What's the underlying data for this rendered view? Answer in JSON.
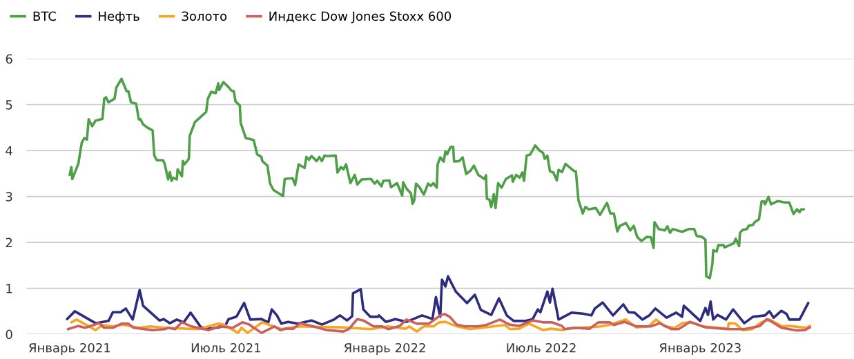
{
  "chart_data": {
    "type": "line",
    "legend": "top left",
    "grid": "y",
    "line_style": "solid",
    "marker": "none",
    "xlim": [
      "2020-11-12",
      "2023-06-28"
    ],
    "xticks": [
      {
        "value": "2021-01-01",
        "label": "Январь 2021"
      },
      {
        "value": "2021-07-01",
        "label": "Июль 2021"
      },
      {
        "value": "2022-01-01",
        "label": "Январь 2022"
      },
      {
        "value": "2022-07-01",
        "label": "Июль 2022"
      },
      {
        "value": "2023-01-01",
        "label": "Январь 2023"
      }
    ],
    "ylim": [
      0,
      6
    ],
    "yticks": [
      0,
      1,
      2,
      3,
      4,
      5,
      6
    ],
    "series": [
      {
        "name": "BTC",
        "color": "#4f9f49",
        "x": [
          "2021-01-01",
          "2021-01-03",
          "2021-01-04",
          "2021-01-11",
          "2021-01-15",
          "2021-01-18",
          "2021-01-21",
          "2021-01-23",
          "2021-01-27",
          "2021-01-31",
          "2021-02-08",
          "2021-02-10",
          "2021-02-12",
          "2021-02-15",
          "2021-02-22",
          "2021-02-24",
          "2021-03-02",
          "2021-03-08",
          "2021-03-10",
          "2021-03-13",
          "2021-03-19",
          "2021-03-22",
          "2021-03-24",
          "2021-03-27",
          "2021-04-01",
          "2021-04-07",
          "2021-04-09",
          "2021-04-12",
          "2021-04-19",
          "2021-04-21",
          "2021-04-25",
          "2021-04-27",
          "2021-04-29",
          "2021-05-01",
          "2021-05-05",
          "2021-05-06",
          "2021-05-11",
          "2021-05-12",
          "2021-05-14",
          "2021-05-19",
          "2021-05-20",
          "2021-05-26",
          "2021-06-08",
          "2021-06-10",
          "2021-06-14",
          "2021-06-19",
          "2021-06-22",
          "2021-06-23",
          "2021-06-28",
          "2021-07-04",
          "2021-07-07",
          "2021-07-10",
          "2021-07-12",
          "2021-07-17",
          "2021-07-18",
          "2021-07-24",
          "2021-08-02",
          "2021-08-06",
          "2021-08-11",
          "2021-08-12",
          "2021-08-18",
          "2021-08-21",
          "2021-08-25",
          "2021-09-05",
          "2021-09-07",
          "2021-09-16",
          "2021-09-19",
          "2021-09-23",
          "2021-09-30",
          "2021-10-02",
          "2021-10-05",
          "2021-10-08",
          "2021-10-14",
          "2021-10-17",
          "2021-10-20",
          "2021-10-23",
          "2021-10-26",
          "2021-11-05",
          "2021-11-07",
          "2021-11-11",
          "2021-11-14",
          "2021-11-17",
          "2021-11-22",
          "2021-11-27",
          "2021-11-30",
          "2021-12-05",
          "2021-12-16",
          "2021-12-20",
          "2021-12-23",
          "2021-12-28",
          "2021-12-30",
          "2022-01-06",
          "2022-01-08",
          "2022-01-15",
          "2022-01-21",
          "2022-01-22",
          "2022-01-26",
          "2022-01-31",
          "2022-02-02",
          "2022-02-04",
          "2022-02-06",
          "2022-02-10",
          "2022-02-15",
          "2022-02-20",
          "2022-02-23",
          "2022-02-26",
          "2022-03-02",
          "2022-03-03",
          "2022-03-06",
          "2022-03-10",
          "2022-03-12",
          "2022-03-14",
          "2022-03-18",
          "2022-03-21",
          "2022-03-22",
          "2022-03-28",
          "2022-04-01",
          "2022-04-05",
          "2022-04-10",
          "2022-04-14",
          "2022-04-19",
          "2022-04-26",
          "2022-04-28",
          "2022-04-29",
          "2022-05-02",
          "2022-05-04",
          "2022-05-07",
          "2022-05-09",
          "2022-05-12",
          "2022-05-16",
          "2022-05-21",
          "2022-05-28",
          "2022-05-29",
          "2022-06-02",
          "2022-06-06",
          "2022-06-09",
          "2022-06-11",
          "2022-06-14",
          "2022-06-18",
          "2022-06-24",
          "2022-06-29",
          "2022-07-03",
          "2022-07-05",
          "2022-07-08",
          "2022-07-11",
          "2022-07-15",
          "2022-07-19",
          "2022-07-21",
          "2022-07-25",
          "2022-07-29",
          "2022-08-08",
          "2022-08-10",
          "2022-08-13",
          "2022-08-18",
          "2022-08-21",
          "2022-08-25",
          "2022-09-02",
          "2022-09-07",
          "2022-09-15",
          "2022-09-19",
          "2022-09-23",
          "2022-09-27",
          "2022-09-30",
          "2022-10-07",
          "2022-10-12",
          "2022-10-16",
          "2022-10-20",
          "2022-10-25",
          "2022-10-31",
          "2022-11-05",
          "2022-11-08",
          "2022-11-09",
          "2022-11-14",
          "2022-11-21",
          "2022-11-24",
          "2022-11-27",
          "2022-11-30",
          "2022-12-11",
          "2022-12-19",
          "2022-12-25",
          "2022-12-28",
          "2023-01-03",
          "2023-01-07",
          "2023-01-08",
          "2023-01-12",
          "2023-01-15",
          "2023-01-16",
          "2023-01-20",
          "2023-01-22",
          "2023-01-28",
          "2023-01-29",
          "2023-02-09",
          "2023-02-11",
          "2023-02-15",
          "2023-02-16",
          "2023-02-19",
          "2023-02-24",
          "2023-02-26",
          "2023-03-03",
          "2023-03-05",
          "2023-03-10",
          "2023-03-13",
          "2023-03-16",
          "2023-03-17",
          "2023-03-21",
          "2023-03-24",
          "2023-04-01",
          "2023-04-09",
          "2023-04-14",
          "2023-04-19",
          "2023-04-23",
          "2023-04-26",
          "2023-04-28",
          "2023-05-01"
        ],
        "values": [
          3.47,
          3.64,
          3.38,
          3.71,
          4.17,
          4.27,
          4.24,
          4.68,
          4.53,
          4.65,
          4.69,
          5.13,
          5.16,
          5.05,
          5.13,
          5.37,
          5.56,
          5.29,
          5.29,
          5.05,
          5.02,
          4.68,
          4.68,
          4.57,
          4.5,
          4.44,
          3.89,
          3.79,
          3.79,
          3.71,
          3.37,
          3.53,
          3.34,
          3.41,
          3.37,
          3.59,
          3.44,
          3.77,
          3.7,
          3.82,
          4.32,
          4.62,
          4.84,
          5.13,
          5.28,
          5.25,
          5.46,
          5.32,
          5.49,
          5.38,
          5.31,
          5.29,
          5.07,
          4.98,
          4.6,
          4.27,
          4.23,
          3.92,
          3.86,
          3.77,
          3.67,
          3.28,
          3.14,
          3.01,
          3.38,
          3.4,
          3.25,
          3.7,
          3.62,
          3.86,
          3.8,
          3.88,
          3.77,
          3.86,
          3.77,
          3.89,
          3.88,
          3.89,
          3.52,
          3.64,
          3.59,
          3.7,
          3.29,
          3.47,
          3.26,
          3.37,
          3.38,
          3.28,
          3.34,
          3.22,
          3.34,
          3.35,
          3.2,
          3.29,
          3.02,
          3.31,
          3.17,
          3.07,
          2.84,
          2.92,
          3.28,
          3.2,
          3.04,
          3.28,
          3.23,
          3.29,
          3.19,
          3.7,
          3.85,
          3.76,
          3.98,
          3.92,
          4.08,
          4.08,
          3.76,
          3.77,
          3.85,
          3.49,
          3.56,
          3.67,
          3.47,
          3.38,
          3.46,
          2.95,
          2.93,
          2.77,
          3.05,
          2.75,
          3.29,
          3.19,
          3.38,
          3.46,
          3.32,
          3.47,
          3.41,
          3.52,
          3.34,
          3.89,
          3.91,
          4.11,
          4.0,
          3.95,
          3.82,
          3.89,
          3.55,
          3.52,
          3.35,
          3.58,
          3.53,
          3.71,
          3.55,
          3.55,
          2.92,
          2.63,
          2.77,
          2.72,
          2.75,
          2.6,
          2.86,
          2.63,
          2.63,
          2.24,
          2.36,
          2.42,
          2.26,
          2.36,
          2.12,
          2.03,
          2.12,
          2.11,
          1.88,
          2.44,
          2.29,
          2.26,
          2.35,
          2.21,
          2.29,
          2.23,
          2.29,
          2.29,
          2.14,
          2.12,
          2.06,
          1.26,
          1.22,
          1.52,
          1.83,
          1.8,
          1.94,
          1.94,
          1.89,
          1.98,
          2.08,
          1.92,
          2.21,
          2.27,
          2.29,
          2.36,
          2.38,
          2.44,
          2.5,
          2.89,
          2.89,
          2.83,
          2.99,
          2.83,
          2.9,
          2.87,
          2.87,
          2.62,
          2.72,
          2.66,
          2.72,
          2.72
        ]
      },
      {
        "name": "Нефть",
        "color": "#2e2c7c",
        "x": [
          "2020-12-29",
          "2021-01-07",
          "2021-01-31",
          "2021-02-15",
          "2021-02-20",
          "2021-03-01",
          "2021-03-07",
          "2021-03-15",
          "2021-03-23",
          "2021-03-27",
          "2021-04-15",
          "2021-04-20",
          "2021-04-27",
          "2021-05-05",
          "2021-05-13",
          "2021-05-21",
          "2021-06-02",
          "2021-06-14",
          "2021-06-30",
          "2021-07-04",
          "2021-07-13",
          "2021-07-22",
          "2021-07-29",
          "2021-08-11",
          "2021-08-19",
          "2021-08-23",
          "2021-08-29",
          "2021-09-03",
          "2021-09-11",
          "2021-09-22",
          "2021-10-08",
          "2021-10-20",
          "2021-11-03",
          "2021-11-10",
          "2021-11-18",
          "2021-11-24",
          "2021-11-25",
          "2021-12-04",
          "2021-12-07",
          "2021-12-15",
          "2021-12-24",
          "2021-12-25",
          "2022-01-02",
          "2022-01-13",
          "2022-01-26",
          "2022-02-13",
          "2022-02-25",
          "2022-03-01",
          "2022-03-06",
          "2022-03-08",
          "2022-03-12",
          "2022-03-15",
          "2022-03-24",
          "2022-04-06",
          "2022-04-15",
          "2022-04-22",
          "2022-05-04",
          "2022-05-13",
          "2022-05-22",
          "2022-05-30",
          "2022-06-13",
          "2022-06-21",
          "2022-06-27",
          "2022-06-30",
          "2022-07-08",
          "2022-07-11",
          "2022-07-14",
          "2022-07-21",
          "2022-08-02",
          "2022-08-05",
          "2022-08-18",
          "2022-08-28",
          "2022-09-01",
          "2022-09-10",
          "2022-09-22",
          "2022-10-04",
          "2022-10-10",
          "2022-10-17",
          "2022-10-26",
          "2022-11-03",
          "2022-11-10",
          "2022-11-23",
          "2022-12-04",
          "2022-12-11",
          "2022-12-13",
          "2023-01-01",
          "2023-01-07",
          "2023-01-10",
          "2023-01-13",
          "2023-01-16",
          "2023-01-21",
          "2023-01-31",
          "2023-02-08",
          "2023-02-21",
          "2023-03-03",
          "2023-03-17",
          "2023-03-22",
          "2023-03-27",
          "2023-04-05",
          "2023-04-11",
          "2023-04-14",
          "2023-04-26",
          "2023-05-06"
        ],
        "values": [
          0.33,
          0.5,
          0.24,
          0.29,
          0.48,
          0.48,
          0.56,
          0.32,
          0.96,
          0.62,
          0.3,
          0.33,
          0.24,
          0.32,
          0.26,
          0.47,
          0.15,
          0.12,
          0.18,
          0.33,
          0.38,
          0.68,
          0.32,
          0.33,
          0.26,
          0.54,
          0.41,
          0.23,
          0.27,
          0.23,
          0.3,
          0.21,
          0.32,
          0.41,
          0.3,
          0.39,
          0.89,
          0.98,
          0.54,
          0.38,
          0.38,
          0.41,
          0.27,
          0.33,
          0.27,
          0.41,
          0.33,
          0.81,
          0.38,
          1.19,
          1.04,
          1.26,
          0.93,
          0.68,
          0.86,
          0.53,
          0.42,
          0.78,
          0.41,
          0.29,
          0.29,
          0.33,
          0.54,
          0.48,
          0.93,
          0.69,
          0.99,
          0.32,
          0.44,
          0.47,
          0.45,
          0.41,
          0.56,
          0.69,
          0.41,
          0.65,
          0.48,
          0.47,
          0.32,
          0.41,
          0.56,
          0.36,
          0.47,
          0.38,
          0.62,
          0.29,
          0.57,
          0.42,
          0.71,
          0.32,
          0.42,
          0.32,
          0.54,
          0.24,
          0.38,
          0.41,
          0.5,
          0.36,
          0.51,
          0.44,
          0.32,
          0.32,
          0.68
        ]
      },
      {
        "name": "Золото",
        "color": "#f5a623",
        "x": [
          "2021-01-03",
          "2021-01-09",
          "2021-01-31",
          "2021-02-08",
          "2021-02-20",
          "2021-03-03",
          "2021-03-22",
          "2021-04-04",
          "2021-04-23",
          "2021-05-30",
          "2021-06-22",
          "2021-06-28",
          "2021-07-15",
          "2021-07-19",
          "2021-07-26",
          "2021-08-12",
          "2021-09-03",
          "2021-09-23",
          "2021-11-11",
          "2021-12-16",
          "2022-01-04",
          "2022-01-25",
          "2022-01-29",
          "2022-02-07",
          "2022-02-15",
          "2022-02-26",
          "2022-03-05",
          "2022-03-12",
          "2022-03-24",
          "2022-04-09",
          "2022-04-23",
          "2022-05-20",
          "2022-05-26",
          "2022-06-05",
          "2022-06-17",
          "2022-07-03",
          "2022-07-12",
          "2022-07-26",
          "2022-07-31",
          "2022-09-08",
          "2022-09-19",
          "2022-10-07",
          "2022-10-19",
          "2022-11-02",
          "2022-11-11",
          "2022-11-21",
          "2022-12-03",
          "2022-12-11",
          "2022-12-21",
          "2023-01-04",
          "2023-02-02",
          "2023-02-03",
          "2023-02-11",
          "2023-02-19",
          "2023-03-02",
          "2023-03-13",
          "2023-03-22",
          "2023-04-06",
          "2023-04-14",
          "2023-05-04",
          "2023-05-08"
        ],
        "values": [
          0.26,
          0.32,
          0.09,
          0.2,
          0.17,
          0.21,
          0.14,
          0.17,
          0.14,
          0.11,
          0.23,
          0.21,
          0.03,
          0.14,
          0.03,
          0.26,
          0.11,
          0.17,
          0.15,
          0.11,
          0.17,
          0.12,
          0.17,
          0.06,
          0.17,
          0.17,
          0.26,
          0.27,
          0.18,
          0.11,
          0.14,
          0.2,
          0.11,
          0.12,
          0.23,
          0.09,
          0.12,
          0.09,
          0.12,
          0.17,
          0.21,
          0.32,
          0.15,
          0.17,
          0.32,
          0.17,
          0.14,
          0.24,
          0.26,
          0.17,
          0.12,
          0.24,
          0.23,
          0.09,
          0.11,
          0.26,
          0.32,
          0.17,
          0.18,
          0.14,
          0.18
        ]
      },
      {
        "name": "Индекс Dow Jones Stoxx 600",
        "color": "#c9625f",
        "x": [
          "2020-12-30",
          "2021-01-11",
          "2021-01-19",
          "2021-02-04",
          "2021-02-10",
          "2021-02-20",
          "2021-03-02",
          "2021-03-10",
          "2021-03-16",
          "2021-04-07",
          "2021-04-21",
          "2021-04-25",
          "2021-05-03",
          "2021-05-11",
          "2021-05-22",
          "2021-06-11",
          "2021-06-23",
          "2021-07-09",
          "2021-07-20",
          "2021-07-28",
          "2021-08-11",
          "2021-08-21",
          "2021-08-26",
          "2021-09-02",
          "2021-09-08",
          "2021-09-17",
          "2021-09-25",
          "2021-10-10",
          "2021-10-26",
          "2021-11-14",
          "2021-11-20",
          "2021-11-30",
          "2021-12-07",
          "2021-12-19",
          "2021-12-29",
          "2022-01-05",
          "2022-01-18",
          "2022-01-26",
          "2022-02-07",
          "2022-02-21",
          "2022-03-06",
          "2022-03-11",
          "2022-03-17",
          "2022-03-25",
          "2022-04-04",
          "2022-04-18",
          "2022-04-28",
          "2022-05-14",
          "2022-05-25",
          "2022-06-05",
          "2022-06-21",
          "2022-07-03",
          "2022-07-13",
          "2022-07-25",
          "2022-07-28",
          "2022-08-08",
          "2022-08-26",
          "2022-09-05",
          "2022-09-18",
          "2022-09-23",
          "2022-10-05",
          "2022-10-19",
          "2022-11-05",
          "2022-11-15",
          "2022-11-29",
          "2022-12-07",
          "2022-12-20",
          "2023-01-07",
          "2023-02-02",
          "2023-02-21",
          "2023-03-11",
          "2023-03-19",
          "2023-03-25",
          "2023-04-05",
          "2023-04-23",
          "2023-05-02",
          "2023-05-08"
        ],
        "values": [
          0.11,
          0.18,
          0.14,
          0.24,
          0.14,
          0.14,
          0.23,
          0.23,
          0.14,
          0.09,
          0.11,
          0.14,
          0.11,
          0.26,
          0.17,
          0.09,
          0.17,
          0.14,
          0.26,
          0.21,
          0.03,
          0.12,
          0.17,
          0.09,
          0.12,
          0.12,
          0.24,
          0.17,
          0.09,
          0.06,
          0.11,
          0.33,
          0.3,
          0.17,
          0.17,
          0.11,
          0.18,
          0.32,
          0.23,
          0.23,
          0.41,
          0.44,
          0.38,
          0.21,
          0.17,
          0.17,
          0.2,
          0.32,
          0.21,
          0.18,
          0.3,
          0.26,
          0.26,
          0.18,
          0.11,
          0.14,
          0.12,
          0.26,
          0.26,
          0.2,
          0.27,
          0.17,
          0.17,
          0.24,
          0.11,
          0.11,
          0.27,
          0.15,
          0.11,
          0.11,
          0.18,
          0.33,
          0.27,
          0.14,
          0.08,
          0.09,
          0.15
        ]
      }
    ]
  }
}
